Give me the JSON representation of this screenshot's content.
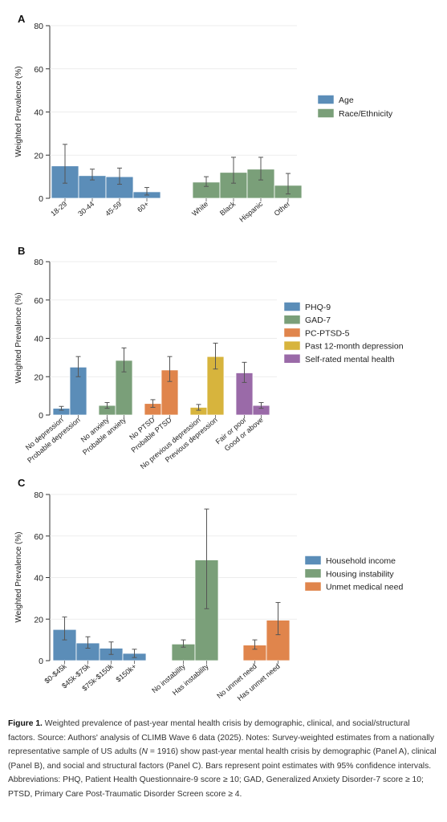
{
  "chart_data": [
    {
      "type": "bar",
      "panel_label": "A",
      "ylabel": "Weighted Prevalence (%)",
      "ylim": [
        0,
        80
      ],
      "yticks": [
        0,
        20,
        40,
        60,
        80
      ],
      "legend_position": "right",
      "groups": [
        {
          "name": "Age",
          "color": "#5b8db8",
          "categories": [
            "18-29",
            "30-44",
            "45-59",
            "60+"
          ],
          "values": [
            15,
            10.5,
            10,
            3
          ],
          "ci": [
            [
              7,
              25
            ],
            [
              8.5,
              13.5
            ],
            [
              6.5,
              14
            ],
            [
              1.5,
              5
            ]
          ]
        },
        {
          "name": "Race/Ethnicity",
          "color": "#7a9f79",
          "categories": [
            "White",
            "Black",
            "Hispanic",
            "Other"
          ],
          "values": [
            7.5,
            12,
            13.5,
            6
          ],
          "ci": [
            [
              5.5,
              10
            ],
            [
              7,
              19
            ],
            [
              8.5,
              19
            ],
            [
              2,
              11.5
            ]
          ]
        }
      ]
    },
    {
      "type": "bar",
      "panel_label": "B",
      "ylabel": "Weighted Prevalence (%)",
      "ylim": [
        0,
        80
      ],
      "yticks": [
        0,
        20,
        40,
        60,
        80
      ],
      "legend_position": "right",
      "groups": [
        {
          "name": "PHQ-9",
          "color": "#5b8db8",
          "categories": [
            "No depression",
            "Probable depression"
          ],
          "values": [
            3.5,
            25
          ],
          "ci": [
            [
              2.5,
              4.5
            ],
            [
              20,
              30.5
            ]
          ]
        },
        {
          "name": "GAD-7",
          "color": "#7a9f79",
          "categories": [
            "No anxiety",
            "Probable anxiety"
          ],
          "values": [
            5,
            28.5
          ],
          "ci": [
            [
              3.5,
              6.5
            ],
            [
              22.5,
              35
            ]
          ]
        },
        {
          "name": "PC-PTSD-5",
          "color": "#e0854c",
          "categories": [
            "No PTSD",
            "Probable PTSD"
          ],
          "values": [
            6,
            23.5
          ],
          "ci": [
            [
              4,
              8
            ],
            [
              17.5,
              30.5
            ]
          ]
        },
        {
          "name": "Past 12-month depression",
          "color": "#d7b43d",
          "categories": [
            "No previous depression",
            "Previous depression"
          ],
          "values": [
            4,
            30.5
          ],
          "ci": [
            [
              2.5,
              5.5
            ],
            [
              24,
              37.5
            ]
          ]
        },
        {
          "name": "Self-rated mental health",
          "color": "#9a6aa8",
          "categories": [
            "Fair or poor",
            "Good or above"
          ],
          "values": [
            22,
            5
          ],
          "ci": [
            [
              17,
              27.5
            ],
            [
              3.5,
              6.5
            ]
          ]
        }
      ]
    },
    {
      "type": "bar",
      "panel_label": "C",
      "ylabel": "Weighted Prevalence (%)",
      "ylim": [
        0,
        80
      ],
      "yticks": [
        0,
        20,
        40,
        60,
        80
      ],
      "legend_position": "right",
      "groups": [
        {
          "name": "Household income",
          "color": "#5b8db8",
          "categories": [
            "$0-$45k",
            "$45k-$75k",
            "$75k-$150k",
            "$150k+"
          ],
          "values": [
            15,
            8.5,
            6,
            3.5
          ],
          "ci": [
            [
              10,
              21
            ],
            [
              6,
              11.5
            ],
            [
              3,
              9
            ],
            [
              1.5,
              5.5
            ]
          ]
        },
        {
          "name": "Housing instability",
          "color": "#7a9f79",
          "categories": [
            "No instability",
            "Has instability"
          ],
          "values": [
            8,
            48.5
          ],
          "ci": [
            [
              6.5,
              10
            ],
            [
              25,
              73
            ]
          ]
        },
        {
          "name": "Unmet medical need",
          "color": "#e0854c",
          "categories": [
            "No unmet need",
            "Has unmet need"
          ],
          "values": [
            7.5,
            19.5
          ],
          "ci": [
            [
              5.5,
              10
            ],
            [
              12.5,
              28
            ]
          ]
        }
      ]
    }
  ],
  "caption": {
    "label": "Figure 1.",
    "text_1": "Weighted prevalence of past-year mental health crisis by demographic, clinical, and social/structural factors. Source: Authors' analysis of CLIMB Wave 6 data (2025). Notes: Survey-weighted estimates from a nationally representative sample of US adults (",
    "n_symbol": "N",
    "text_2": " = 1916) show past-year mental health crisis by demographic (Panel A), clinical (Panel B), and social and structural factors (Panel C). Bars represent point estimates with 95% confidence intervals. Abbreviations: PHQ, Patient Health Questionnaire-9 score ≥ 10; GAD, Generalized Anxiety Disorder-7 score ≥ 10; PTSD, Primary Care Post-Traumatic Disorder Screen score ≥ 4."
  }
}
